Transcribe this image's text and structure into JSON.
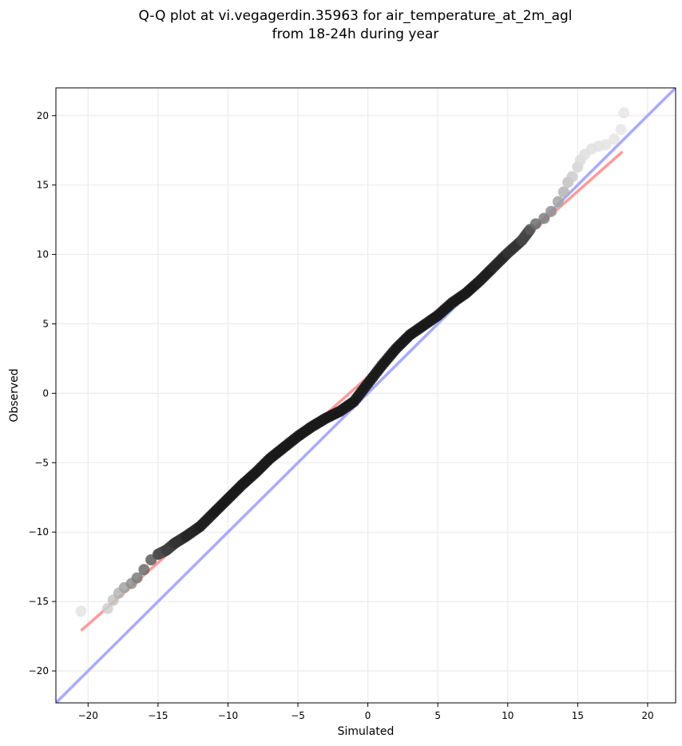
{
  "chart_data": {
    "type": "scatter",
    "title_lines": [
      "Q-Q plot at vi.vegagerdin.35963 for air_temperature_at_2m_agl",
      "from 18-24h during year"
    ],
    "xlabel": "Simulated",
    "ylabel": "Observed",
    "xlim": [
      -22.3,
      22.0
    ],
    "ylim": [
      -22.3,
      22.0
    ],
    "xticks": [
      -20,
      -15,
      -10,
      -5,
      0,
      5,
      10,
      15,
      20
    ],
    "yticks": [
      -20,
      -15,
      -10,
      -5,
      0,
      5,
      10,
      15,
      20
    ],
    "xtick_labels": [
      "−20",
      "−15",
      "−10",
      "−5",
      "0",
      "5",
      "10",
      "15",
      "20"
    ],
    "ytick_labels": [
      "−20",
      "−15",
      "−10",
      "−5",
      "0",
      "5",
      "10",
      "15",
      "20"
    ],
    "grid": true,
    "identity_line": {
      "color": "#aaaaff",
      "from": [
        -22.3,
        -22.3
      ],
      "to": [
        22.0,
        22.0
      ]
    },
    "fit_line": {
      "color": "#ff9a9a",
      "from": [
        -20.5,
        -17.1
      ],
      "to": [
        18.2,
        17.4
      ]
    },
    "points": {
      "x": [
        -20.5,
        -18.6,
        -18.2,
        -17.8,
        -17.4,
        -16.9,
        -16.5,
        -16.0,
        -15.5,
        -15.0,
        -14.4,
        -13.8,
        -13.0,
        -12.0,
        -11.0,
        -10.0,
        -9.0,
        -8.0,
        -7.0,
        -6.0,
        -5.0,
        -4.0,
        -3.0,
        -2.0,
        -1.0,
        0.0,
        1.0,
        2.0,
        3.0,
        4.0,
        5.0,
        6.0,
        7.0,
        8.0,
        9.0,
        10.0,
        11.0,
        11.6,
        12.0,
        12.6,
        13.1,
        13.6,
        14.0,
        14.3,
        14.6,
        15.0,
        15.2,
        15.5,
        16.0,
        16.5,
        17.0,
        17.6,
        18.1,
        18.3
      ],
      "y": [
        -15.7,
        -15.5,
        -14.9,
        -14.4,
        -14.0,
        -13.7,
        -13.3,
        -12.7,
        -12.0,
        -11.6,
        -11.3,
        -10.8,
        -10.3,
        -9.6,
        -8.6,
        -7.6,
        -6.6,
        -5.7,
        -4.7,
        -3.9,
        -3.1,
        -2.4,
        -1.8,
        -1.3,
        -0.6,
        0.7,
        2.0,
        3.2,
        4.2,
        4.9,
        5.6,
        6.5,
        7.2,
        8.1,
        9.1,
        10.1,
        11.0,
        11.8,
        12.2,
        12.6,
        13.1,
        13.8,
        14.5,
        15.2,
        15.6,
        16.3,
        16.8,
        17.2,
        17.6,
        17.8,
        17.9,
        18.3,
        19.0,
        20.2
      ],
      "colors": [
        "#e4e4e4",
        "#d0d0d0",
        "#c4c4c4",
        "#b5b5b5",
        "#a3a3a3",
        "#8f8f8f",
        "#7b7b7b",
        "#6a6a6a",
        "#5a5a5a",
        "#4c4c4c",
        "#3f3f3f",
        "#333333",
        "#262626",
        "#1e1e1e",
        "#1a1a1a",
        "#1a1a1a",
        "#1a1a1a",
        "#1a1a1a",
        "#1a1a1a",
        "#1a1a1a",
        "#1a1a1a",
        "#1a1a1a",
        "#1a1a1a",
        "#1a1a1a",
        "#1a1a1a",
        "#1a1a1a",
        "#1a1a1a",
        "#1a1a1a",
        "#1a1a1a",
        "#1a1a1a",
        "#1a1a1a",
        "#1a1a1a",
        "#1a1a1a",
        "#1e1e1e",
        "#262626",
        "#333333",
        "#454545",
        "#5a5a5a",
        "#6c6c6c",
        "#7f7f7f",
        "#929292",
        "#a3a3a3",
        "#b3b3b3",
        "#c1c1c1",
        "#cbcbcb",
        "#d4d4d4",
        "#dadada",
        "#dedede",
        "#e1e1e1",
        "#e3e3e3",
        "#e4e4e4",
        "#e5e5e5",
        "#e6e6e6",
        "#e6e6e6"
      ]
    }
  }
}
